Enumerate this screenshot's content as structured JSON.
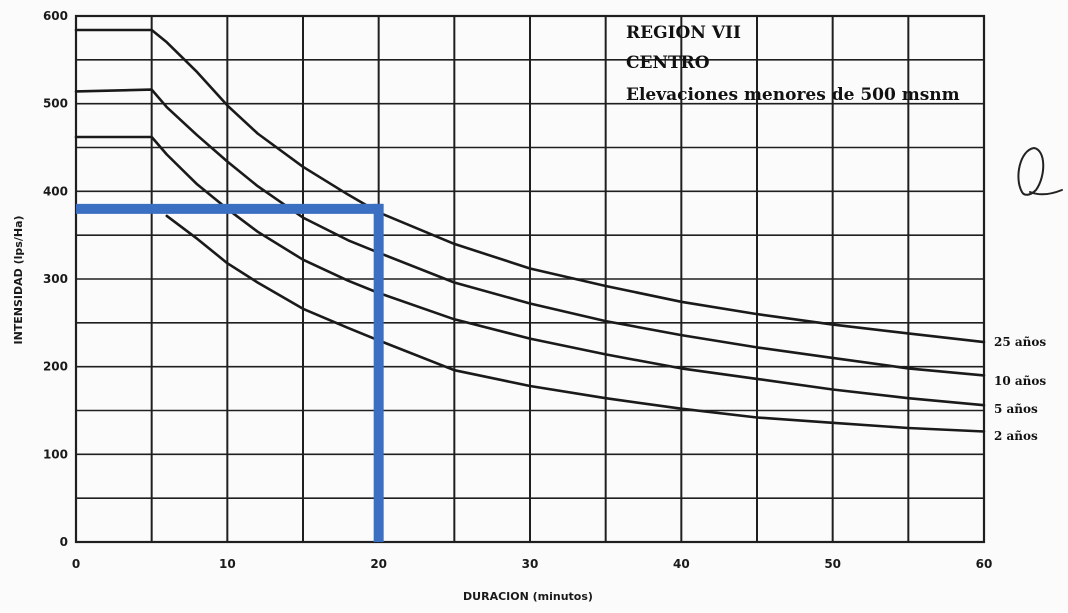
{
  "chart_data": {
    "type": "line",
    "title_lines": [
      "REGION VII",
      "CENTRO",
      "Elevaciones menores de 500 msnm"
    ],
    "xlabel": "DURACION (minutos)",
    "ylabel": "INTENSIDAD (lps/Ha)",
    "xlim": [
      0,
      60
    ],
    "ylim": [
      0,
      600
    ],
    "xticks": [
      0,
      10,
      20,
      30,
      40,
      50,
      60
    ],
    "yticks": [
      0,
      100,
      200,
      300,
      400,
      500,
      600
    ],
    "grid": true,
    "series": [
      {
        "name": "25 años",
        "x": [
          0,
          5,
          6,
          8,
          10,
          12,
          15,
          18,
          20,
          25,
          30,
          35,
          40,
          45,
          50,
          55,
          60
        ],
        "values": [
          584,
          584,
          570,
          536,
          498,
          466,
          428,
          396,
          376,
          340,
          312,
          292,
          274,
          260,
          248,
          238,
          228
        ]
      },
      {
        "name": "10 años",
        "x": [
          0,
          5,
          6,
          8,
          10,
          12,
          15,
          18,
          20,
          25,
          30,
          35,
          40,
          45,
          50,
          55,
          60
        ],
        "values": [
          514,
          516,
          496,
          464,
          434,
          406,
          370,
          344,
          330,
          296,
          272,
          252,
          236,
          222,
          210,
          198,
          190
        ]
      },
      {
        "name": "5 años",
        "x": [
          0,
          5,
          6,
          8,
          10,
          12,
          15,
          18,
          20,
          25,
          30,
          35,
          40,
          45,
          50,
          55,
          60
        ],
        "values": [
          462,
          462,
          442,
          408,
          380,
          354,
          322,
          298,
          284,
          254,
          232,
          214,
          198,
          186,
          174,
          164,
          156
        ]
      },
      {
        "name": "2 años",
        "x": [
          6,
          8,
          10,
          12,
          15,
          18,
          20,
          25,
          30,
          35,
          40,
          45,
          50,
          55,
          60
        ],
        "values": [
          372,
          346,
          318,
          296,
          266,
          244,
          230,
          196,
          178,
          164,
          152,
          142,
          136,
          130,
          126
        ]
      }
    ],
    "annotation": {
      "color": "#3b6fc2",
      "x": 20,
      "y": 380
    },
    "colors": {
      "curves": "#1a1a1a",
      "grid": "#1f1f1f",
      "annotation": "#3b6fc2"
    }
  }
}
